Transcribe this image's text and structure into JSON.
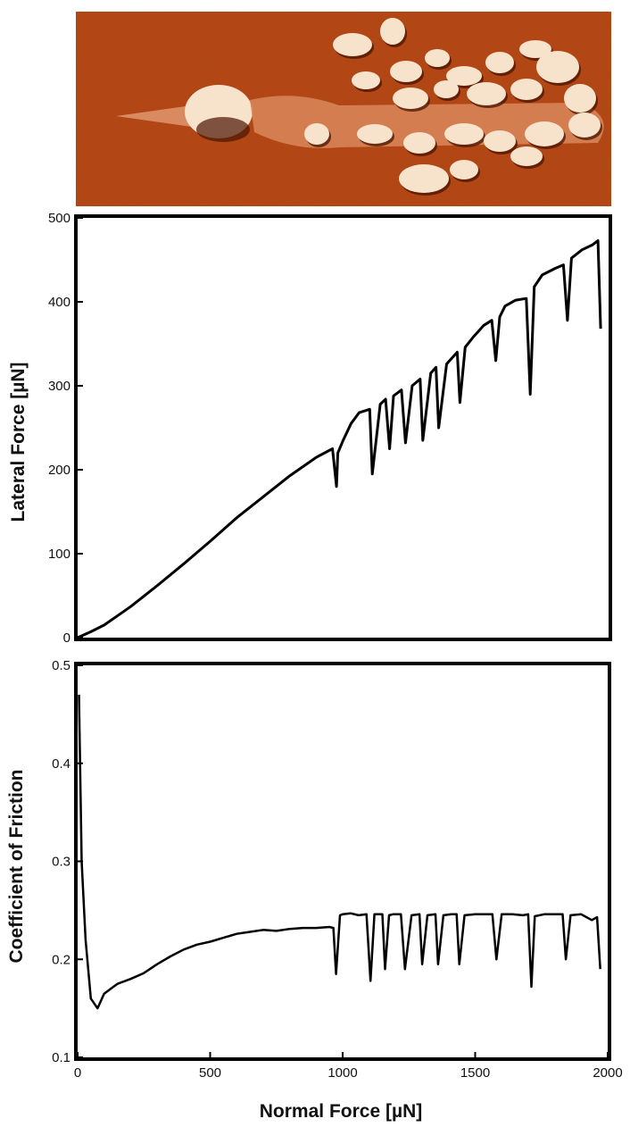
{
  "figure": {
    "afm_image": {
      "colors": {
        "background": "#b5410f",
        "highlight": "#f7e3cc",
        "shadow": "#4a1402"
      }
    },
    "marker": {
      "x": 975,
      "style": "dotted",
      "color": "#000000"
    }
  },
  "chart_data": [
    {
      "type": "line",
      "panel": "top",
      "xlim": [
        0,
        2000
      ],
      "ylim": [
        0,
        500
      ],
      "xlabel": "",
      "ylabel": "Lateral Force [µN]",
      "x_ticks": [],
      "y_ticks": [
        0,
        100,
        200,
        300,
        400,
        500
      ],
      "series": [
        {
          "color": "#000000",
          "x": [
            0,
            50,
            100,
            200,
            300,
            400,
            500,
            600,
            700,
            800,
            900,
            960,
            975,
            980,
            1000,
            1030,
            1060,
            1100,
            1110,
            1140,
            1160,
            1175,
            1190,
            1220,
            1235,
            1260,
            1290,
            1300,
            1330,
            1350,
            1360,
            1390,
            1430,
            1440,
            1460,
            1490,
            1530,
            1560,
            1575,
            1590,
            1610,
            1650,
            1690,
            1705,
            1720,
            1750,
            1800,
            1830,
            1845,
            1860,
            1900,
            1940,
            1960,
            1970
          ],
          "values": [
            0,
            7,
            15,
            37,
            62,
            88,
            115,
            143,
            168,
            193,
            215,
            225,
            180,
            220,
            235,
            255,
            268,
            272,
            195,
            278,
            284,
            225,
            288,
            295,
            232,
            300,
            308,
            235,
            315,
            322,
            250,
            326,
            340,
            280,
            346,
            358,
            372,
            378,
            330,
            382,
            395,
            402,
            404,
            290,
            418,
            432,
            440,
            444,
            378,
            452,
            462,
            468,
            473,
            368
          ]
        }
      ]
    },
    {
      "type": "line",
      "panel": "bottom",
      "xlim": [
        0,
        2000
      ],
      "ylim": [
        0.1,
        0.5
      ],
      "xlabel": "Normal Force [µN]",
      "ylabel": "Coefficient of Friction",
      "x_ticks": [
        0,
        500,
        1000,
        1500,
        2000
      ],
      "y_ticks": [
        0.1,
        0.2,
        0.3,
        0.4,
        0.5
      ],
      "series": [
        {
          "color": "#000000",
          "x": [
            5,
            15,
            30,
            50,
            75,
            100,
            150,
            200,
            250,
            300,
            350,
            400,
            450,
            500,
            550,
            600,
            650,
            700,
            750,
            800,
            850,
            900,
            950,
            965,
            975,
            990,
            1000,
            1030,
            1060,
            1090,
            1105,
            1120,
            1150,
            1160,
            1175,
            1190,
            1220,
            1235,
            1260,
            1290,
            1300,
            1320,
            1350,
            1360,
            1380,
            1410,
            1430,
            1440,
            1460,
            1500,
            1540,
            1565,
            1580,
            1600,
            1640,
            1680,
            1700,
            1712,
            1725,
            1760,
            1800,
            1830,
            1842,
            1860,
            1900,
            1940,
            1960,
            1972
          ],
          "values": [
            0.47,
            0.3,
            0.22,
            0.16,
            0.15,
            0.165,
            0.175,
            0.18,
            0.186,
            0.195,
            0.203,
            0.21,
            0.215,
            0.218,
            0.222,
            0.226,
            0.228,
            0.23,
            0.229,
            0.231,
            0.232,
            0.232,
            0.233,
            0.232,
            0.185,
            0.245,
            0.246,
            0.247,
            0.245,
            0.246,
            0.178,
            0.246,
            0.246,
            0.19,
            0.245,
            0.246,
            0.246,
            0.19,
            0.245,
            0.246,
            0.195,
            0.245,
            0.246,
            0.195,
            0.245,
            0.246,
            0.246,
            0.195,
            0.245,
            0.246,
            0.246,
            0.246,
            0.2,
            0.246,
            0.246,
            0.245,
            0.246,
            0.172,
            0.244,
            0.246,
            0.246,
            0.246,
            0.2,
            0.245,
            0.246,
            0.24,
            0.243,
            0.19
          ]
        }
      ]
    }
  ]
}
